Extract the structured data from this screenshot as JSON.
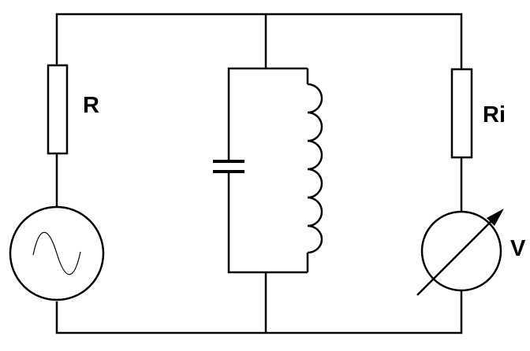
{
  "labels": {
    "resistor_left": "R",
    "resistor_right": "Ri",
    "voltmeter": "V"
  }
}
